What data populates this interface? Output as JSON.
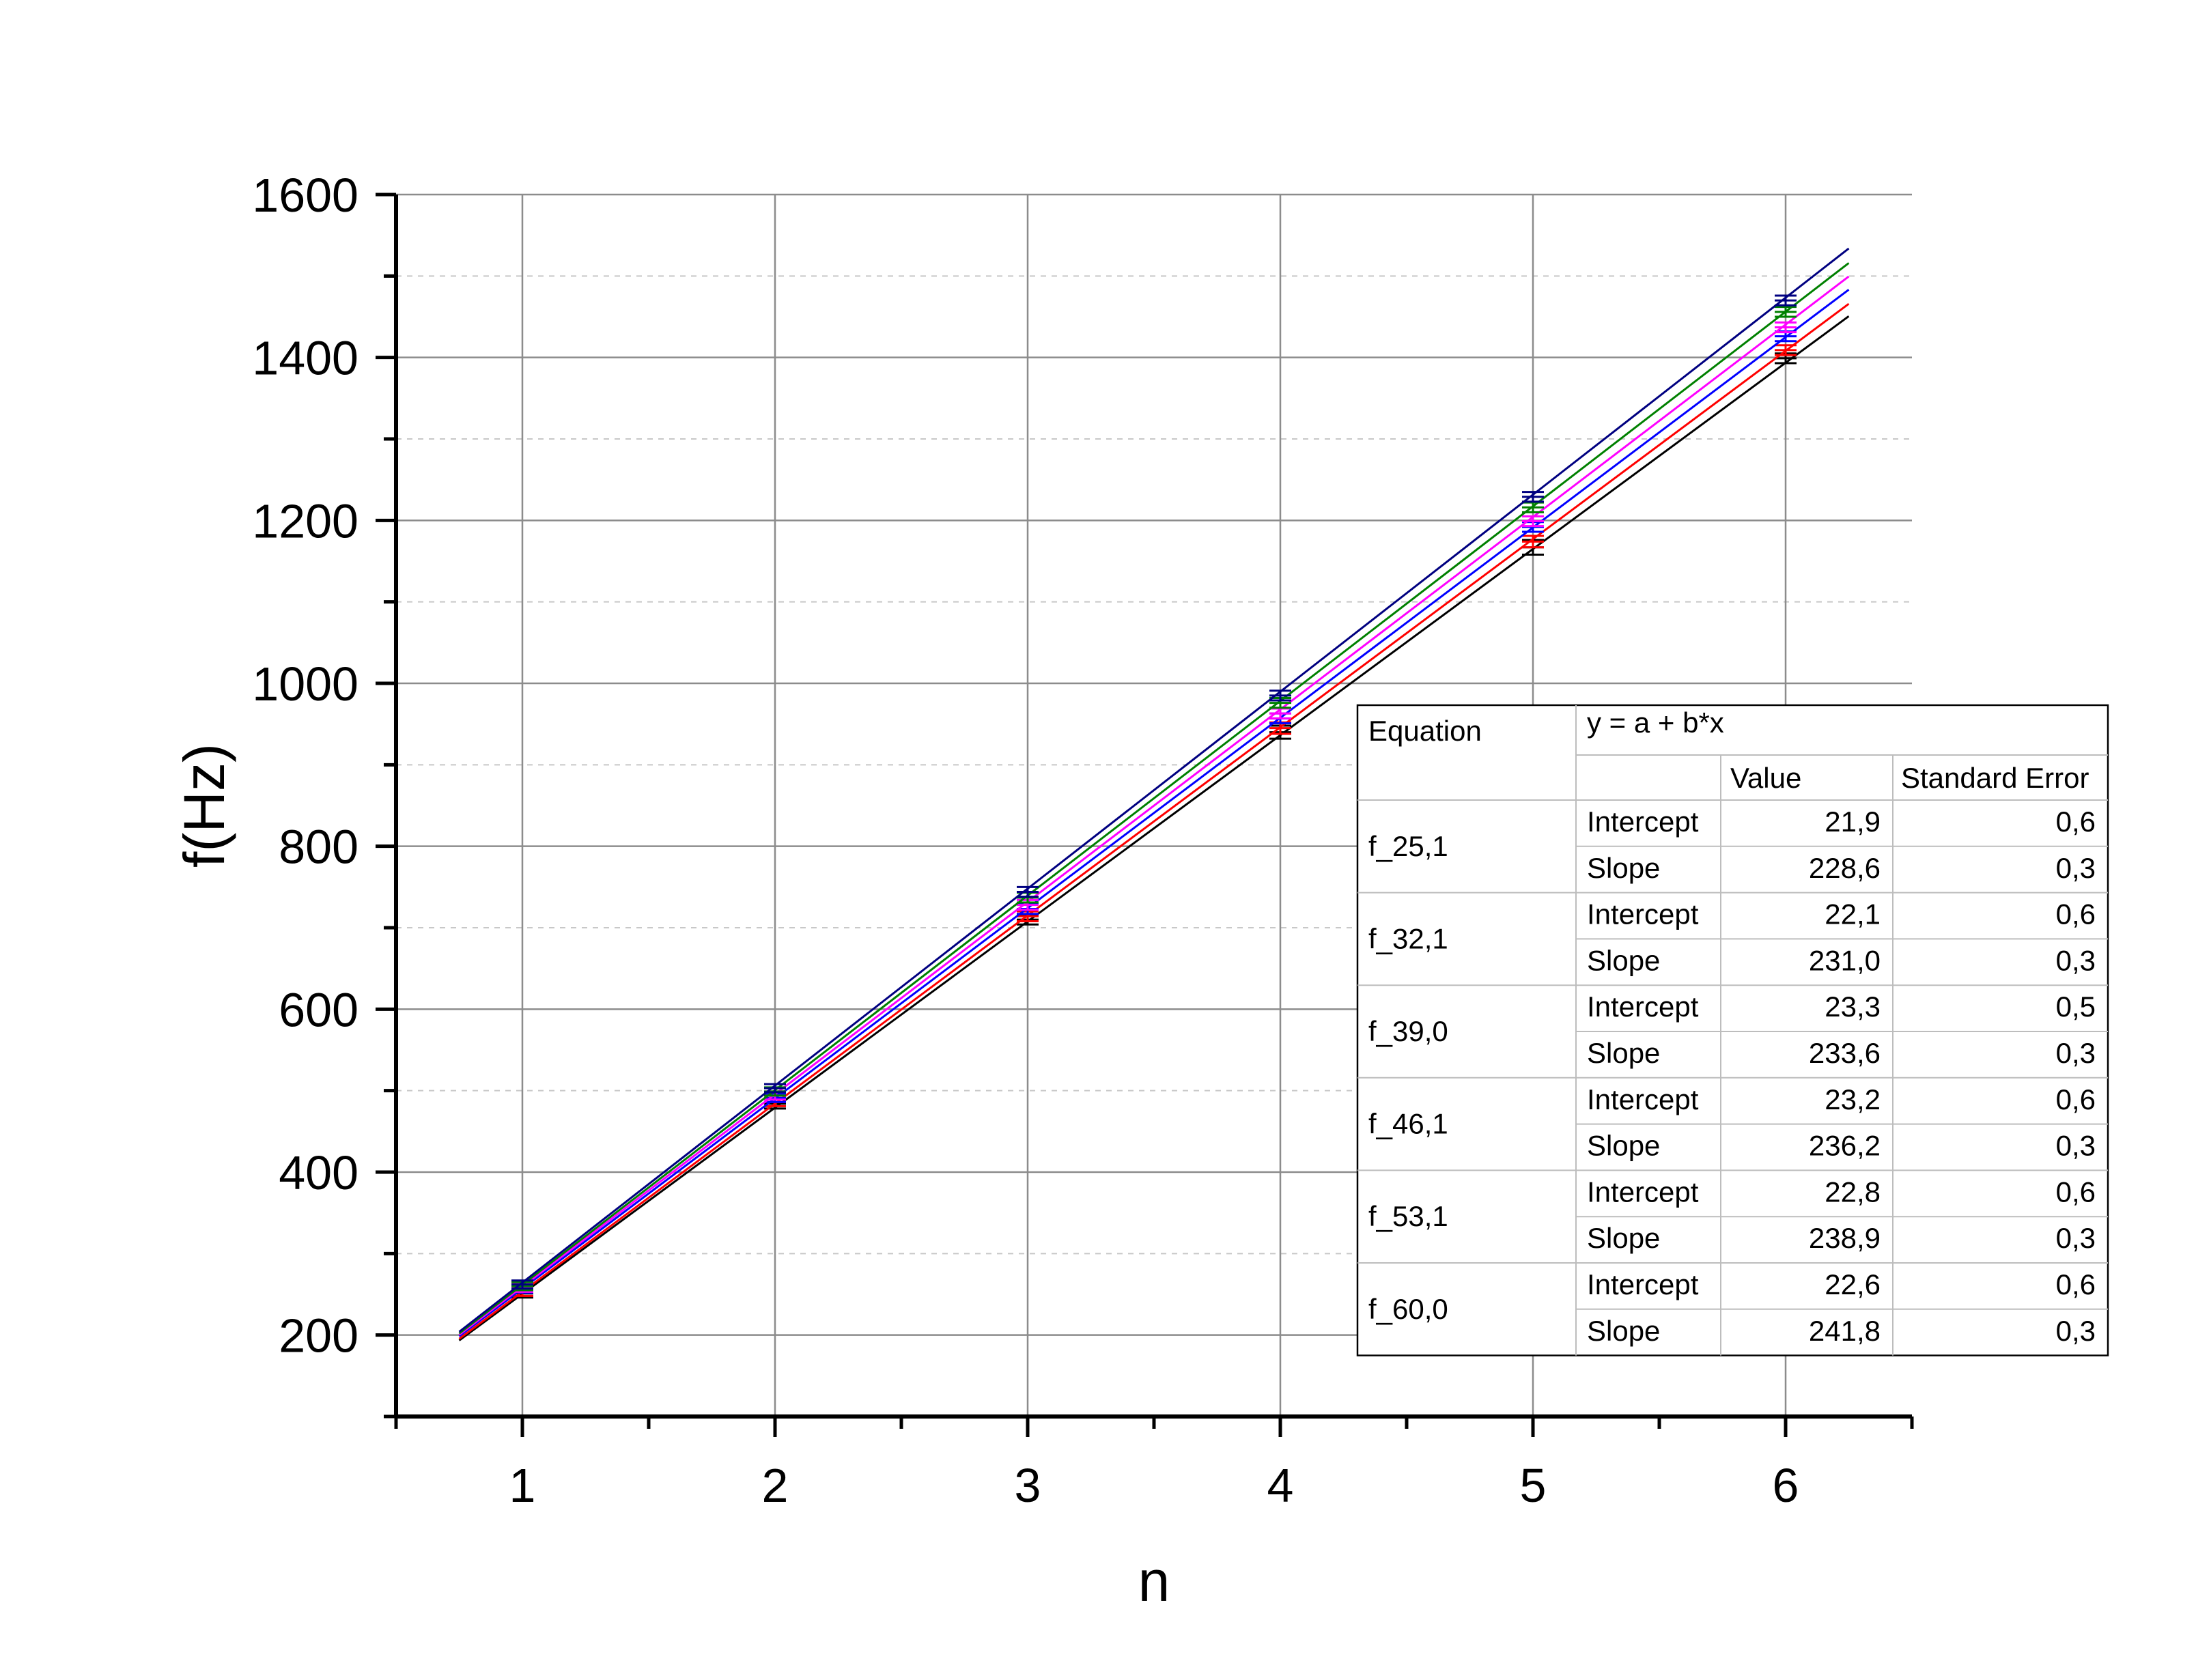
{
  "chart_data": {
    "type": "line",
    "xlabel": "n",
    "ylabel": "f(Hz)",
    "xlim": [
      0.5,
      6.5
    ],
    "ylim": [
      100,
      1600
    ],
    "xticks": [
      1,
      2,
      3,
      4,
      5,
      6
    ],
    "yticks": [
      200,
      400,
      600,
      800,
      1000,
      1200,
      1400,
      1600
    ],
    "grid": true,
    "fit_range": [
      0.75,
      6.25
    ],
    "x": [
      1,
      2,
      3,
      4,
      5,
      6
    ],
    "series": [
      {
        "color": "#000000",
        "values": [
          251,
          484,
          710,
          940,
          1167,
          1399
        ],
        "errors": [
          5,
          6,
          6,
          8,
          9,
          6
        ]
      },
      {
        "color": "#ff0000",
        "values": [
          253,
          486,
          714,
          945,
          1174,
          1409
        ],
        "errors": [
          5,
          5,
          6,
          7,
          7,
          6
        ]
      },
      {
        "color": "#0000ff",
        "values": [
          257,
          491,
          723,
          957,
          1192,
          1426
        ],
        "errors": [
          5,
          5,
          6,
          6,
          6,
          6
        ]
      },
      {
        "color": "#ff00ff",
        "values": [
          258,
          494,
          728,
          963,
          1199,
          1437
        ],
        "errors": [
          5,
          5,
          6,
          6,
          6,
          6
        ]
      },
      {
        "color": "#008000",
        "values": [
          260,
          499,
          737,
          976,
          1216,
          1456
        ],
        "errors": [
          5,
          5,
          6,
          6,
          6,
          6
        ]
      },
      {
        "color": "#000080",
        "values": [
          262,
          503,
          744,
          985,
          1229,
          1470
        ],
        "errors": [
          5,
          5,
          6,
          6,
          6,
          6
        ]
      }
    ],
    "fit_table": {
      "equation_label": "Equation",
      "equation": "y = a + b*x",
      "headers": [
        "Value",
        "Standard Error"
      ],
      "rows": [
        {
          "name": "f_25,1",
          "params": [
            {
              "param": "Intercept",
              "value": "21,9",
              "error": "0,6"
            },
            {
              "param": "Slope",
              "value": "228,6",
              "error": "0,3"
            }
          ]
        },
        {
          "name": "f_32,1",
          "params": [
            {
              "param": "Intercept",
              "value": "22,1",
              "error": "0,6"
            },
            {
              "param": "Slope",
              "value": "231,0",
              "error": "0,3"
            }
          ]
        },
        {
          "name": "f_39,0",
          "params": [
            {
              "param": "Intercept",
              "value": "23,3",
              "error": "0,5"
            },
            {
              "param": "Slope",
              "value": "233,6",
              "error": "0,3"
            }
          ]
        },
        {
          "name": "f_46,1",
          "params": [
            {
              "param": "Intercept",
              "value": "23,2",
              "error": "0,6"
            },
            {
              "param": "Slope",
              "value": "236,2",
              "error": "0,3"
            }
          ]
        },
        {
          "name": "f_53,1",
          "params": [
            {
              "param": "Intercept",
              "value": "22,8",
              "error": "0,6"
            },
            {
              "param": "Slope",
              "value": "238,9",
              "error": "0,3"
            }
          ]
        },
        {
          "name": "f_60,0",
          "params": [
            {
              "param": "Intercept",
              "value": "22,6",
              "error": "0,6"
            },
            {
              "param": "Slope",
              "value": "241,8",
              "error": "0,3"
            }
          ]
        }
      ]
    }
  }
}
